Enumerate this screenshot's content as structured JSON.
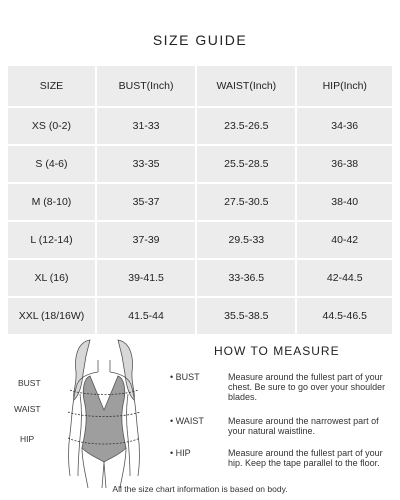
{
  "title": "SIZE GUIDE",
  "table": {
    "headers": [
      "SIZE",
      "BUST(Inch)",
      "WAIST(Inch)",
      "HIP(Inch)"
    ],
    "rows": [
      [
        "XS (0-2)",
        "31-33",
        "23.5-26.5",
        "34-36"
      ],
      [
        "S (4-6)",
        "33-35",
        "25.5-28.5",
        "36-38"
      ],
      [
        "M (8-10)",
        "35-37",
        "27.5-30.5",
        "38-40"
      ],
      [
        "L (12-14)",
        "37-39",
        "29.5-33",
        "40-42"
      ],
      [
        "XL (16)",
        "39-41.5",
        "33-36.5",
        "42-44.5"
      ],
      [
        "XXL (18/16W)",
        "41.5-44",
        "35.5-38.5",
        "44.5-46.5"
      ]
    ]
  },
  "figure": {
    "labels": {
      "bust": "BUST",
      "waist": "WAIST",
      "hip": "HIP"
    }
  },
  "how_to_measure": {
    "title": "HOW TO MEASURE",
    "items": [
      {
        "label": "• BUST",
        "text": "Measure around the fullest part of your chest. Be sure to go over your shoulder blades."
      },
      {
        "label": "• WAIST",
        "text": "Measure around the narrowest part of your natural waistline."
      },
      {
        "label": "• HIP",
        "text": "Measure around the fullest part of your hip. Keep the tape parallel to the floor."
      }
    ]
  },
  "footer": "All the size chart information is based on body."
}
